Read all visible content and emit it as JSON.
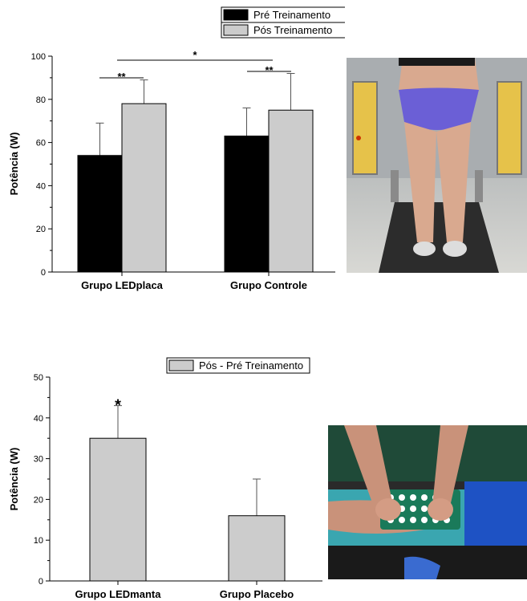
{
  "chart_data": [
    {
      "type": "bar",
      "categories": [
        "Grupo LEDplaca",
        "Grupo Controle"
      ],
      "series": [
        {
          "name": "Pré Treinamento",
          "values": [
            54,
            63
          ],
          "errors": [
            15,
            13
          ],
          "color": "#000000"
        },
        {
          "name": "Pós Treinamento",
          "values": [
            78,
            75
          ],
          "errors": [
            11,
            17
          ],
          "color": "#cccccc"
        }
      ],
      "ylabel": "Potência (W)",
      "xlabel": "",
      "ylim": [
        0,
        100
      ],
      "yticks": [
        "0",
        "20",
        "40",
        "60",
        "80",
        "100"
      ],
      "legend_position": "top",
      "significance": [
        {
          "label": "**",
          "comparison": "Grupo LEDplaca: Pré vs Pós"
        },
        {
          "label": "**",
          "comparison": "Grupo Controle: Pré vs Pós"
        },
        {
          "label": "*",
          "comparison": "Grupo LEDplaca vs Grupo Controle"
        }
      ]
    },
    {
      "type": "bar",
      "categories": [
        "Grupo LEDmanta",
        "Grupo Placebo"
      ],
      "series": [
        {
          "name": "Pós - Pré Treinamento",
          "values": [
            35,
            16
          ],
          "errors": [
            8,
            9
          ],
          "color": "#cccccc"
        }
      ],
      "ylabel": "Potência (W)",
      "xlabel": "",
      "ylim": [
        0,
        50
      ],
      "yticks": [
        "0",
        "10",
        "20",
        "30",
        "40",
        "50"
      ],
      "legend_position": "top",
      "significance": [
        {
          "label": "*",
          "comparison": "Grupo LEDmanta"
        }
      ]
    }
  ],
  "photos": {
    "top": {
      "icon": "treadmill-photo"
    },
    "bottom": {
      "icon": "led-blanket-photo"
    }
  }
}
